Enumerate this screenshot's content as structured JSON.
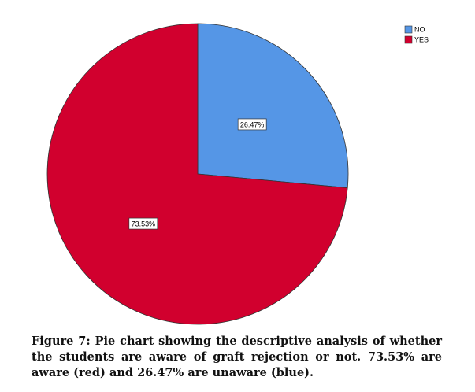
{
  "chart_data": {
    "type": "pie",
    "title": "Figure 7: Pie chart showing the descriptive analysis of whether the students are aware of graft rejection or not. 73.53% are aware (red) and 26.47% are unaware (blue).",
    "categories": [
      "NO",
      "YES"
    ],
    "values": [
      26.47,
      73.53
    ],
    "value_labels": [
      "26.47%",
      "73.53%"
    ],
    "colors": [
      "#5596e6",
      "#d1002e"
    ],
    "legend": "top-right"
  }
}
